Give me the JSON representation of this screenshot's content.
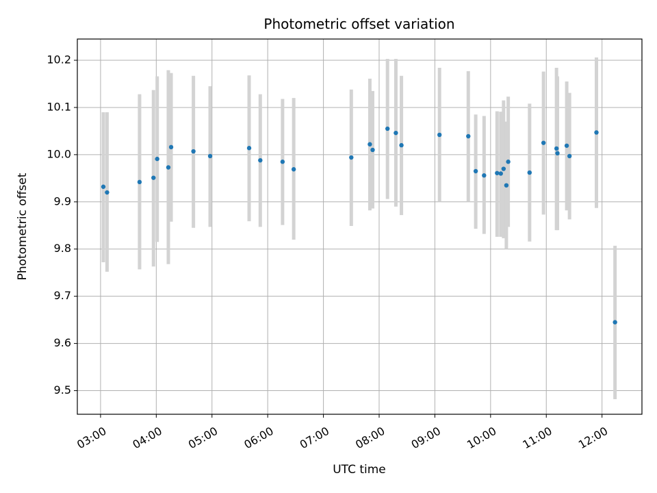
{
  "chart_data": {
    "type": "scatter",
    "title": "Photometric offset variation",
    "xlabel": "UTC time",
    "ylabel": "Photometric offset",
    "xlim": [
      "02:35",
      "12:43"
    ],
    "ylim": [
      9.45,
      10.245
    ],
    "x_ticks": [
      "03:00",
      "04:00",
      "05:00",
      "06:00",
      "07:00",
      "08:00",
      "09:00",
      "10:00",
      "11:00",
      "12:00"
    ],
    "y_ticks": [
      9.5,
      9.6,
      9.7,
      9.8,
      9.9,
      10.0,
      10.1,
      10.2
    ],
    "y_tick_labels": [
      "9.5",
      "9.6",
      "9.7",
      "9.8",
      "9.9",
      "10.0",
      "10.1",
      "10.2"
    ],
    "grid": true,
    "point_color": "#1f77b4",
    "errorbar_color": "#d3d3d3",
    "points": [
      {
        "x": "03:03",
        "y": 9.932,
        "low": 9.772,
        "high": 10.09
      },
      {
        "x": "03:07",
        "y": 9.92,
        "low": 9.752,
        "high": 10.09
      },
      {
        "x": "03:42",
        "y": 9.942,
        "low": 9.757,
        "high": 10.128
      },
      {
        "x": "03:57",
        "y": 9.951,
        "low": 9.763,
        "high": 10.137
      },
      {
        "x": "04:01",
        "y": 9.991,
        "low": 9.815,
        "high": 10.166
      },
      {
        "x": "04:13",
        "y": 9.973,
        "low": 9.768,
        "high": 10.179
      },
      {
        "x": "04:16",
        "y": 10.016,
        "low": 9.858,
        "high": 10.173
      },
      {
        "x": "04:40",
        "y": 10.007,
        "low": 9.845,
        "high": 10.167
      },
      {
        "x": "04:58",
        "y": 9.997,
        "low": 9.847,
        "high": 10.145
      },
      {
        "x": "05:40",
        "y": 10.014,
        "low": 9.859,
        "high": 10.168
      },
      {
        "x": "05:52",
        "y": 9.988,
        "low": 9.847,
        "high": 10.128
      },
      {
        "x": "06:16",
        "y": 9.985,
        "low": 9.851,
        "high": 10.118
      },
      {
        "x": "06:28",
        "y": 9.969,
        "low": 9.82,
        "high": 10.12
      },
      {
        "x": "07:30",
        "y": 9.994,
        "low": 9.849,
        "high": 10.138
      },
      {
        "x": "07:50",
        "y": 10.022,
        "low": 9.882,
        "high": 10.161
      },
      {
        "x": "07:53",
        "y": 10.01,
        "low": 9.886,
        "high": 10.135
      },
      {
        "x": "08:09",
        "y": 10.055,
        "low": 9.906,
        "high": 10.203
      },
      {
        "x": "08:18",
        "y": 10.046,
        "low": 9.89,
        "high": 10.203
      },
      {
        "x": "08:24",
        "y": 10.02,
        "low": 9.872,
        "high": 10.167
      },
      {
        "x": "09:05",
        "y": 10.042,
        "low": 9.9,
        "high": 10.184
      },
      {
        "x": "09:36",
        "y": 10.039,
        "low": 9.9,
        "high": 10.177
      },
      {
        "x": "09:44",
        "y": 9.965,
        "low": 9.843,
        "high": 10.085
      },
      {
        "x": "09:53",
        "y": 9.956,
        "low": 9.832,
        "high": 10.082
      },
      {
        "x": "10:07",
        "y": 9.961,
        "low": 9.826,
        "high": 10.092
      },
      {
        "x": "10:11",
        "y": 9.96,
        "low": 9.826,
        "high": 10.091
      },
      {
        "x": "10:14",
        "y": 9.97,
        "low": 9.823,
        "high": 10.115
      },
      {
        "x": "10:17",
        "y": 9.935,
        "low": 9.8,
        "high": 10.07
      },
      {
        "x": "10:19",
        "y": 9.985,
        "low": 9.847,
        "high": 10.123
      },
      {
        "x": "10:42",
        "y": 9.962,
        "low": 9.816,
        "high": 10.108
      },
      {
        "x": "10:57",
        "y": 10.025,
        "low": 9.873,
        "high": 10.176
      },
      {
        "x": "11:11",
        "y": 10.013,
        "low": 9.84,
        "high": 10.184
      },
      {
        "x": "11:12",
        "y": 10.003,
        "low": 9.84,
        "high": 10.166
      },
      {
        "x": "11:22",
        "y": 10.019,
        "low": 9.882,
        "high": 10.155
      },
      {
        "x": "11:25",
        "y": 9.997,
        "low": 9.863,
        "high": 10.131
      },
      {
        "x": "11:54",
        "y": 10.047,
        "low": 9.887,
        "high": 10.206
      },
      {
        "x": "12:14",
        "y": 9.645,
        "low": 9.482,
        "high": 9.807
      }
    ]
  }
}
